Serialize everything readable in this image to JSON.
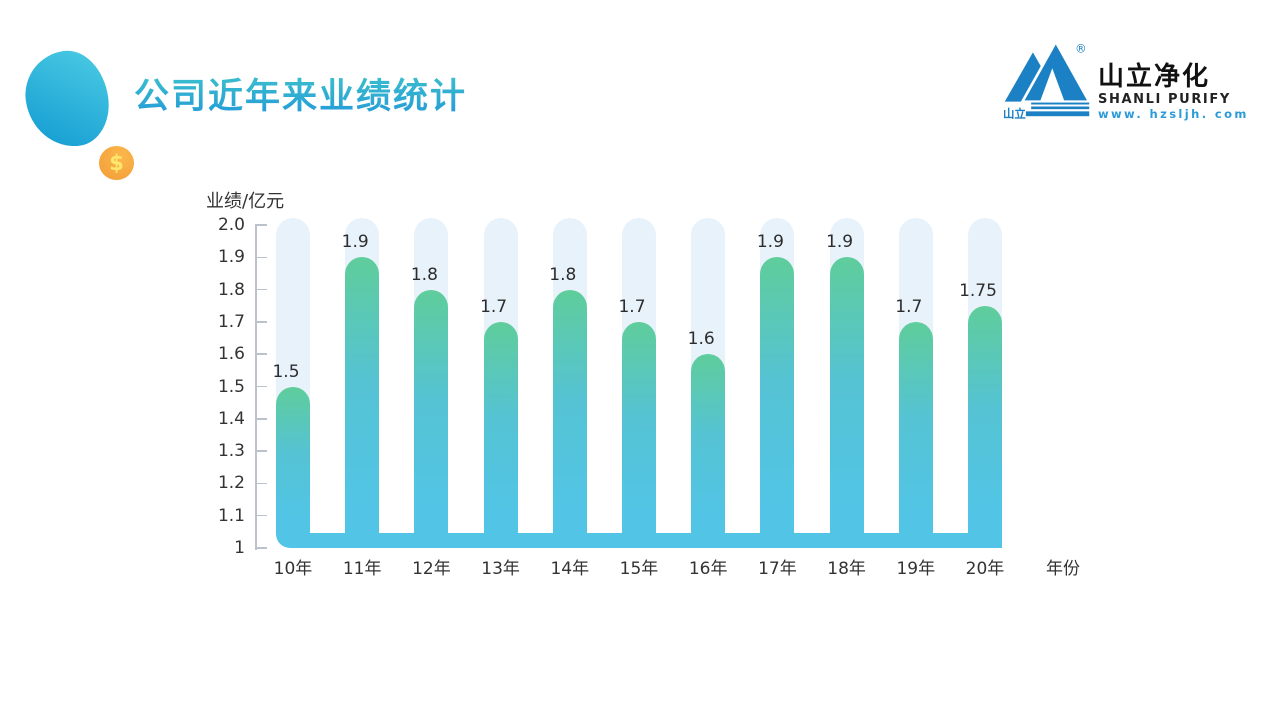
{
  "header": {
    "title": "公司近年来业绩统计"
  },
  "decor": {
    "coin_symbol": "$"
  },
  "logo": {
    "icon_label": "山立",
    "reg_mark": "®",
    "name_cn": "山立净化",
    "name_en": "SHANLI PURIFY",
    "website": "www. hzsljh. com"
  },
  "theme": {
    "title_gradient": [
      "#3fc5cb",
      "#2298d9"
    ],
    "logo_blue": "#1b80c4",
    "website_blue": "#2b9bd8",
    "coin_gradient": [
      "#fbb84b",
      "#f29b38"
    ],
    "coin_symbol_yellow": "#ffe76e",
    "blob_gradient": [
      "#4acae3",
      "#149cd2"
    ]
  },
  "chart_data": {
    "type": "bar",
    "title": "公司近年来业绩统计",
    "ylabel": "业绩/亿元",
    "xlabel": "年份",
    "categories": [
      "10年",
      "11年",
      "12年",
      "13年",
      "14年",
      "15年",
      "16年",
      "17年",
      "18年",
      "19年",
      "20年"
    ],
    "values": [
      1.5,
      1.9,
      1.8,
      1.7,
      1.8,
      1.7,
      1.6,
      1.9,
      1.9,
      1.7,
      1.75
    ],
    "value_labels": [
      "1.5",
      "1.9",
      "1.8",
      "1.7",
      "1.8",
      "1.7",
      "1.6",
      "1.9",
      "1.9",
      "1.7",
      "1.75"
    ],
    "yticks": [
      "2.0",
      "1.9",
      "1.8",
      "1.7",
      "1.6",
      "1.5",
      "1.4",
      "1.3",
      "1.2",
      "1.1",
      "1"
    ],
    "ylim": [
      1,
      2
    ],
    "grid": false,
    "legend": false,
    "colors": {
      "track": "#e8f2fb",
      "bar_top": "#5fcd9b",
      "bar_mid": "#55c3d3",
      "bar_bottom": "#52c5e6",
      "axis": "#bcc2cb",
      "text": "#333333"
    }
  }
}
